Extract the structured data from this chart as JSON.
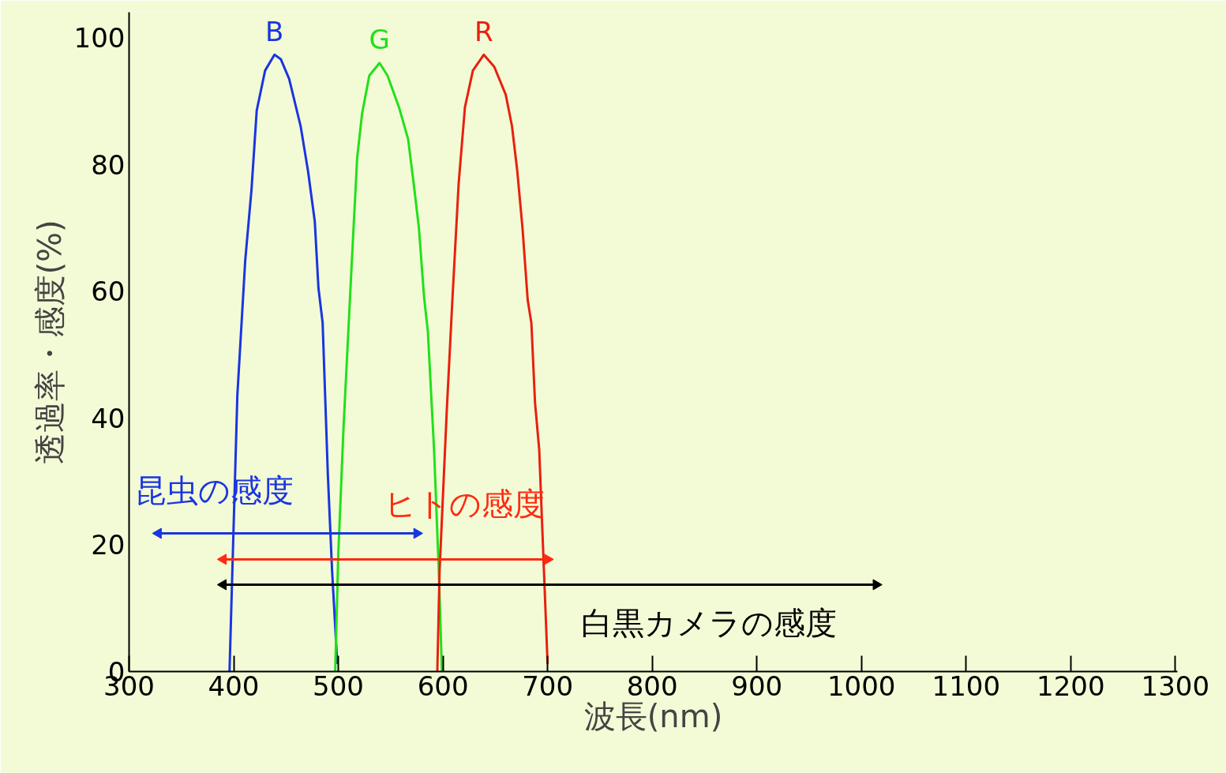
{
  "chart_data": {
    "type": "line",
    "xlabel": "波長(nm)",
    "ylabel": "透過率・感度(%)",
    "xlim": [
      300,
      1302
    ],
    "ylim": [
      0,
      104
    ],
    "xticks": [
      300,
      400,
      500,
      600,
      700,
      800,
      900,
      1000,
      1100,
      1200,
      1300
    ],
    "yticks": [
      0,
      20,
      40,
      60,
      80,
      100
    ],
    "grid": false,
    "marker": "none",
    "line_style": "solid",
    "series": [
      {
        "name": "B",
        "color": "#1a35e0",
        "x": [
          396,
          397.6,
          403.5,
          411,
          417,
          422,
          430,
          439,
          445,
          453,
          464,
          471,
          477.5,
          481,
          485,
          490,
          494,
          499
        ],
        "values": [
          0,
          9.4,
          43.6,
          64.8,
          76,
          88.5,
          94.8,
          97.3,
          96.6,
          93.5,
          86,
          79,
          71,
          60.5,
          55,
          31,
          16,
          1.2
        ]
      },
      {
        "name": "G",
        "color": "#22e01a",
        "x": [
          497,
          500,
          505,
          513,
          518,
          522.7,
          529.6,
          539.4,
          547,
          558,
          566.7,
          572,
          577,
          582,
          585.6,
          591.5,
          596,
          599
        ],
        "values": [
          0,
          18.7,
          38.6,
          65,
          81,
          88,
          94,
          96,
          94,
          89,
          84,
          77,
          70,
          59,
          53.6,
          35,
          16,
          0
        ]
      },
      {
        "name": "R",
        "color": "#e8200f",
        "x": [
          594.6,
          596.8,
          603.6,
          609,
          615,
          621,
          628.6,
          639,
          649,
          660,
          666,
          671,
          676,
          681,
          684.5,
          688,
          692,
          696.5,
          700
        ],
        "values": [
          0,
          16,
          41,
          58.6,
          77,
          89,
          94.8,
          97.3,
          95.4,
          91,
          86,
          79,
          70,
          58.6,
          55,
          42.4,
          35,
          16,
          1.2
        ]
      },
      {
        "color": "#1a35e0",
        "marker": "triangle",
        "x": [
          328,
          575
        ],
        "values": [
          21.8,
          21.8
        ]
      },
      {
        "color": "#ff2a10",
        "marker": "triangle",
        "x": [
          390,
          700
        ],
        "values": [
          17.7,
          17.7
        ]
      },
      {
        "color": "#000000",
        "marker": "triangle",
        "x": [
          390,
          1014
        ],
        "values": [
          13.7,
          13.7
        ]
      }
    ],
    "annotations": [
      "昆虫の感度",
      "ヒトの感度",
      "白黒カメラの感度"
    ]
  }
}
